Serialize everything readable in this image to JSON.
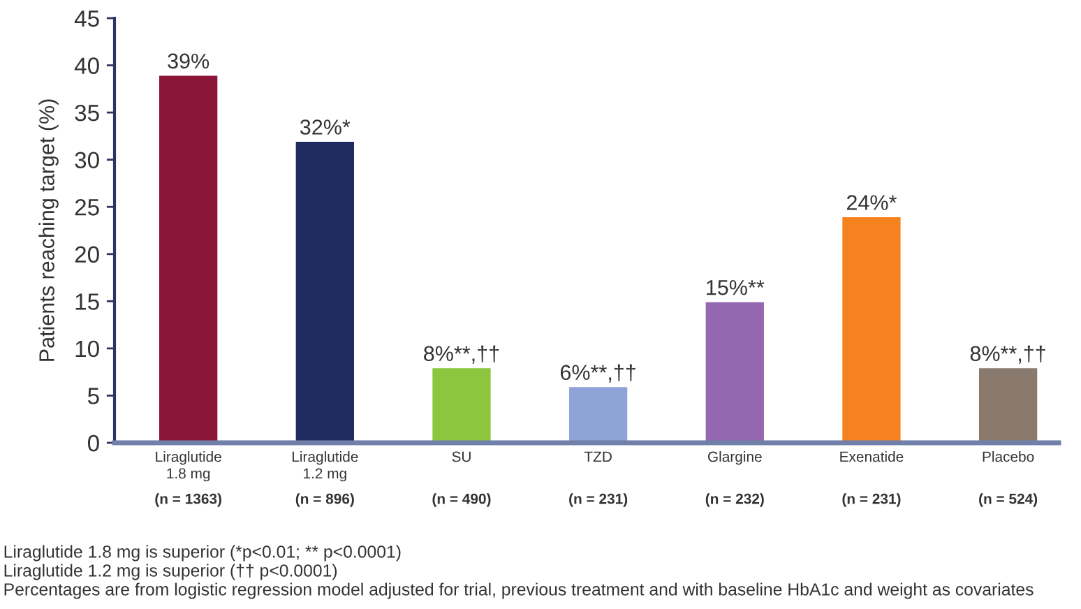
{
  "chart_data": {
    "type": "bar",
    "categories": [
      "Liraglutide\n1.8 mg\n(n = 1363)",
      "Liraglutide\n1.2 mg\n(n = 896)",
      "SU\n(n = 490)",
      "TZD\n(n = 231)",
      "Glargine\n(n = 232)",
      "Exenatide\n(n = 231)",
      "Placebo\n(n = 524)"
    ],
    "values": [
      39,
      32,
      8,
      6,
      15,
      24,
      8
    ],
    "colors": [
      "#8b1538",
      "#1f2a5e",
      "#8cc63f",
      "#8fa3d6",
      "#9467b0",
      "#f5821f",
      "#8a7a6e"
    ],
    "value_labels": [
      "39%",
      "32%*",
      "8%**,††",
      "6%**,††",
      "15%**",
      "24%*",
      "8%**,††"
    ],
    "ylabel": "Patients reaching target (%)",
    "ylim": [
      0,
      45
    ],
    "yticks": [
      0,
      5,
      10,
      15,
      20,
      25,
      30,
      35,
      40,
      45
    ],
    "annotations": [
      "Liraglutide 1.8 mg is superior (*p<0.01; ** p<0.0001)",
      "Liraglutide 1.2 mg is superior (†† p<0.0001)",
      "Percentages are from logistic regression model adjusted for trial, previous treatment and with baseline HbA1c and weight as covariates"
    ]
  }
}
